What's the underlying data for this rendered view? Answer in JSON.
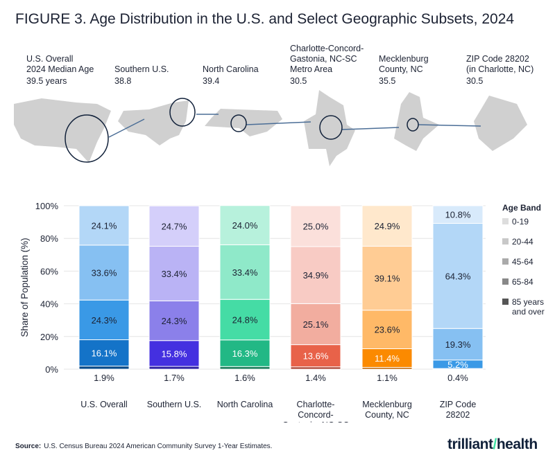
{
  "title": "FIGURE 3. Age Distribution in the U.S. and Select Geographic Subsets, 2024",
  "geographies": [
    {
      "name": "U.S. Overall\n2024 Median Age",
      "median": "39.5 years"
    },
    {
      "name": "Southern U.S.",
      "median": "38.8"
    },
    {
      "name": "North Carolina",
      "median": "39.4"
    },
    {
      "name": "Charlotte-Concord-\nGastonia, NC-SC\nMetro Area",
      "median": "30.5"
    },
    {
      "name": "Mecklenburg\nCounty, NC",
      "median": "35.5"
    },
    {
      "name": "ZIP Code 28202\n(in Charlotte, NC)",
      "median": "30.5"
    }
  ],
  "chart_data": {
    "type": "bar",
    "stacked": true,
    "ylabel": "Share of Population (%)",
    "ylim": [
      0,
      100
    ],
    "yticks": [
      "0%",
      "20%",
      "40%",
      "60%",
      "80%",
      "100%"
    ],
    "grid": true,
    "legend_title": "Age Band",
    "legend_position": "right",
    "categories": [
      "U.S. Overall",
      "Southern U.S.",
      "North Carolina",
      "Charlotte-\nConcord-\nGastonia, NC-SC",
      "Mecklenburg\nCounty, NC",
      "ZIP Code\n28202"
    ],
    "series": [
      {
        "name": "85 years\nand over",
        "values": [
          1.9,
          1.7,
          1.6,
          1.4,
          1.1,
          0.4
        ]
      },
      {
        "name": "65-84",
        "values": [
          16.1,
          15.8,
          16.3,
          13.6,
          11.4,
          5.2
        ]
      },
      {
        "name": "45-64",
        "values": [
          24.3,
          24.3,
          24.8,
          25.1,
          23.6,
          19.3
        ]
      },
      {
        "name": "20-44",
        "values": [
          33.6,
          33.4,
          33.4,
          34.9,
          39.1,
          64.3
        ]
      },
      {
        "name": "0-19",
        "values": [
          24.1,
          24.7,
          24.0,
          25.0,
          24.9,
          10.8
        ]
      }
    ],
    "colors": [
      [
        "#0d4f8c",
        "#1473c8",
        "#3a99e6",
        "#86c0f2",
        "#b3d7f7"
      ],
      [
        "#2a1ca0",
        "#4430e0",
        "#8b80ea",
        "#bab3f5",
        "#d4cffa"
      ],
      [
        "#157a57",
        "#22b885",
        "#45dca5",
        "#8fe9c9",
        "#b7f1dc"
      ],
      [
        "#a83a28",
        "#e86249",
        "#f2ad9f",
        "#f8cbc4",
        "#fbe0db"
      ],
      [
        "#b85f00",
        "#fb8a00",
        "#ffb967",
        "#ffcc94",
        "#ffe8cc"
      ],
      [
        "#1b5fa0",
        "#3a99e6",
        "#86c0f2",
        "#b3d7f7",
        "#d8eafb"
      ]
    ],
    "legend_colors": [
      "#555555",
      "#888888",
      "#aaaaaa",
      "#c8c8c8",
      "#dddddd"
    ]
  },
  "footer": {
    "source_label": "Source:",
    "source_text": "U.S. Census Bureau 2024 American Community Survey 1-Year Estimates.",
    "logo": "trilliant health"
  }
}
